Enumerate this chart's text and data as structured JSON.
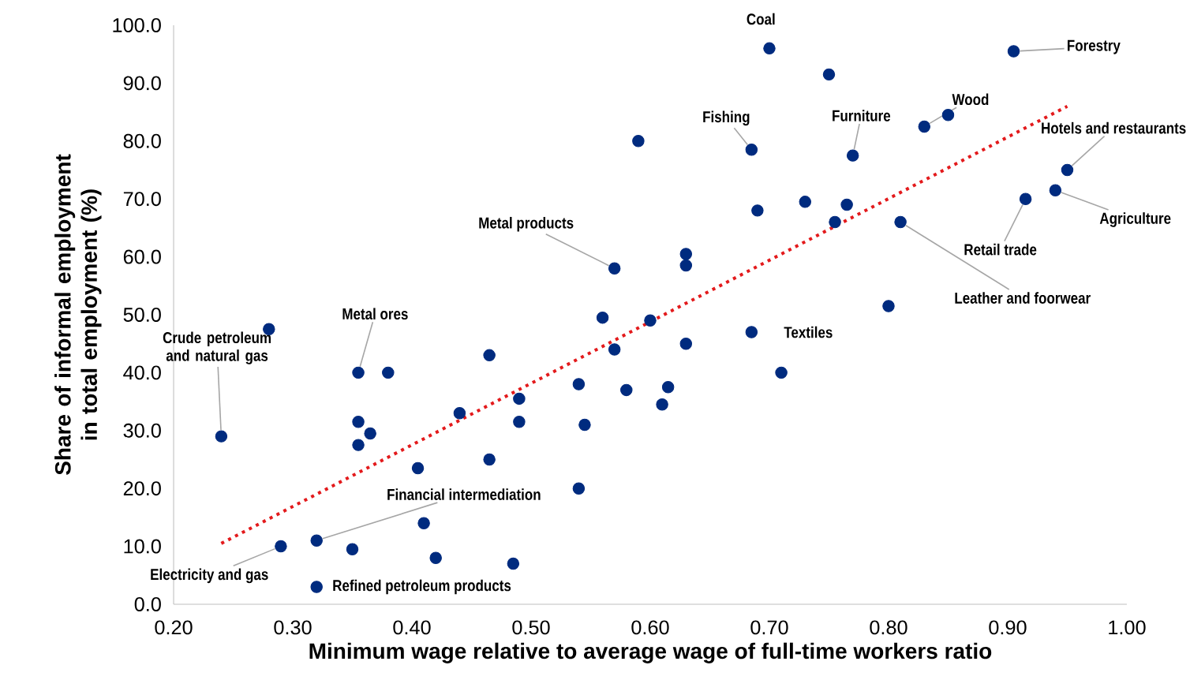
{
  "chart_data": {
    "type": "scatter",
    "xlabel": "Minimum wage relative to average wage of full-time workers ratio",
    "ylabel": "Share of informal employment in total employment (%)",
    "xlim": [
      0.2,
      1.0
    ],
    "ylim": [
      0,
      100
    ],
    "xticks": [
      {
        "value": 0.2,
        "label": "0.20"
      },
      {
        "value": 0.3,
        "label": "0.30"
      },
      {
        "value": 0.4,
        "label": "0.40"
      },
      {
        "value": 0.5,
        "label": "0.50"
      },
      {
        "value": 0.6,
        "label": "0.60"
      },
      {
        "value": 0.7,
        "label": "0.70"
      },
      {
        "value": 0.8,
        "label": "0.80"
      },
      {
        "value": 0.9,
        "label": "0.90"
      },
      {
        "value": 1.0,
        "label": "1.00"
      }
    ],
    "yticks": [
      {
        "value": 0,
        "label": "0.0"
      },
      {
        "value": 10,
        "label": "10.0"
      },
      {
        "value": 20,
        "label": "20.0"
      },
      {
        "value": 30,
        "label": "30.0"
      },
      {
        "value": 40,
        "label": "40.0"
      },
      {
        "value": 50,
        "label": "50.0"
      },
      {
        "value": 60,
        "label": "60.0"
      },
      {
        "value": 70,
        "label": "70.0"
      },
      {
        "value": 80,
        "label": "80.0"
      },
      {
        "value": 90,
        "label": "90.0"
      },
      {
        "value": 100,
        "label": "100.0"
      }
    ],
    "grid": false,
    "series": [
      {
        "marker": "circle",
        "color": "#002b7f",
        "x": [
          0.7,
          0.75,
          0.905,
          0.83,
          0.85,
          0.685,
          0.77,
          0.765,
          0.755,
          0.73,
          0.69,
          0.59,
          0.95,
          0.94,
          0.915,
          0.81,
          0.8,
          0.685,
          0.71,
          0.57,
          0.63,
          0.63,
          0.63,
          0.6,
          0.56,
          0.57,
          0.58,
          0.54,
          0.545,
          0.54,
          0.61,
          0.615,
          0.49,
          0.49,
          0.465,
          0.465,
          0.44,
          0.405,
          0.41,
          0.42,
          0.485,
          0.38,
          0.355,
          0.355,
          0.365,
          0.355,
          0.28,
          0.24,
          0.29,
          0.32,
          0.35,
          0.32
        ],
        "values": [
          96,
          91.5,
          95.5,
          82.5,
          84.5,
          78.5,
          77.5,
          69,
          66,
          69.5,
          68,
          80,
          75,
          71.5,
          70,
          66,
          51.5,
          47,
          40,
          58,
          60.5,
          58.5,
          45,
          49,
          49.5,
          44,
          37,
          38,
          31,
          20,
          34.5,
          37.5,
          35.5,
          31.5,
          43,
          25,
          33,
          23.5,
          14,
          8,
          7,
          40,
          40,
          31.5,
          29.5,
          27.5,
          47.5,
          29,
          10,
          11,
          9.5,
          3
        ]
      },
      {
        "type": "line",
        "marker": "none",
        "color": "#e31a1c",
        "line_style": "dotted",
        "x": [
          0.24,
          0.95
        ],
        "values": [
          10.5,
          86
        ]
      }
    ],
    "annotations": [
      {
        "text": "Coal",
        "x": 0.7,
        "y": 96
      },
      {
        "text": "Forestry",
        "x": 0.905,
        "y": 95.5
      },
      {
        "text": "Wood",
        "x": 0.83,
        "y": 82.5
      },
      {
        "text": "Fishing",
        "x": 0.685,
        "y": 78.5
      },
      {
        "text": "Furniture",
        "x": 0.77,
        "y": 77.5
      },
      {
        "text": "Hotels and restaurants",
        "x": 0.95,
        "y": 75
      },
      {
        "text": "Agriculture",
        "x": 0.94,
        "y": 71.5
      },
      {
        "text": "Retail trade",
        "x": 0.915,
        "y": 70
      },
      {
        "text": "Leather and foorwear",
        "x": 0.81,
        "y": 66
      },
      {
        "text": "Metal products",
        "x": 0.57,
        "y": 58
      },
      {
        "text": "Textiles",
        "x": 0.685,
        "y": 47
      },
      {
        "text": "Metal ores",
        "x": 0.355,
        "y": 40
      },
      {
        "text": "Crude petroleum and natural gas",
        "x": 0.24,
        "y": 29
      },
      {
        "text": "Financial intermediation",
        "x": 0.32,
        "y": 11
      },
      {
        "text": "Electricity and gas",
        "x": 0.29,
        "y": 10
      },
      {
        "text": "Refined petroleum products",
        "x": 0.32,
        "y": 3
      }
    ]
  }
}
